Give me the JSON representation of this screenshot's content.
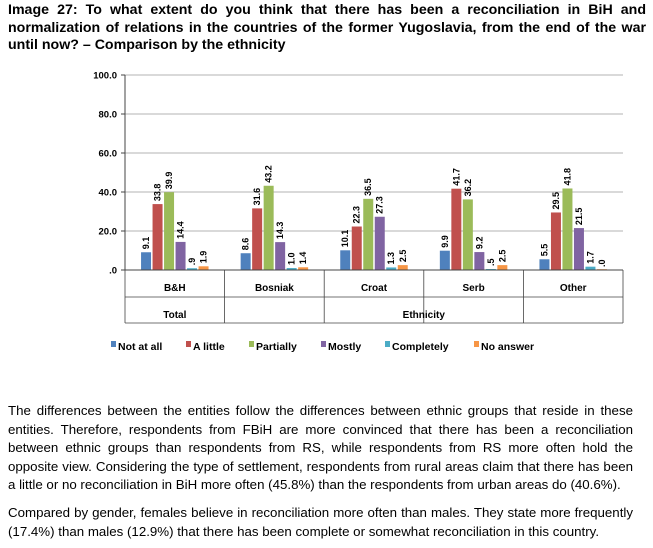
{
  "caption": "Image 27: To what extent do you think that there has been a reconciliation in BiH and normalization of relations in the countries of the former Yugoslavia, from the end of the war until now? – Comparison by the ethnicity",
  "paragraphs": [
    "The differences between the entities follow the differences between ethnic groups that reside in these entities. Therefore, respondents from FBiH are more convinced that there has been a reconciliation between ethnic groups than respondents from RS, while respondents from RS more often hold the opposite view. Considering the type of settlement, respondents from rural areas claim that there has been a little or no reconciliation in BiH more often (45.8%) than the respondents from urban areas do (40.6%).",
    "Compared by gender, females believe in reconciliation more often than males. They state more frequently (17.4%) than males (12.9%) that there has been complete or somewhat reconciliation in this country."
  ],
  "chart_data": {
    "type": "bar",
    "categories": [
      "B&H",
      "Bosniak",
      "Croat",
      "Serb",
      "Other"
    ],
    "groups": [
      {
        "label": "Total",
        "categories": [
          "B&H"
        ]
      },
      {
        "label": "Ethnicity",
        "categories": [
          "Bosniak",
          "Croat",
          "Serb",
          "Other"
        ]
      }
    ],
    "series": [
      {
        "name": "Not at all",
        "color": "#4f81bd",
        "values": [
          9.1,
          8.6,
          10.1,
          9.9,
          5.5
        ],
        "labels": [
          "9.1",
          "8.6",
          "10.1",
          "9.9",
          "5.5"
        ]
      },
      {
        "name": "A little",
        "color": "#c0504d",
        "values": [
          33.8,
          31.6,
          22.3,
          41.7,
          29.5
        ],
        "labels": [
          "33.8",
          "31.6",
          "22.3",
          "41.7",
          "29.5"
        ]
      },
      {
        "name": "Partially",
        "color": "#9bbb59",
        "values": [
          39.9,
          43.2,
          36.5,
          36.2,
          41.8
        ],
        "labels": [
          "39.9",
          "43.2",
          "36.5",
          "36.2",
          "41.8"
        ]
      },
      {
        "name": "Mostly",
        "color": "#8064a2",
        "values": [
          14.4,
          14.3,
          27.3,
          9.2,
          21.5
        ],
        "labels": [
          "14.4",
          "14.3",
          "27.3",
          "9.2",
          "21.5"
        ]
      },
      {
        "name": "Completely",
        "color": "#4bacc6",
        "values": [
          0.9,
          1.0,
          1.3,
          0.5,
          1.7
        ],
        "labels": [
          ".9",
          "1.0",
          "1.3",
          ".5",
          "1.7"
        ]
      },
      {
        "name": "No answer",
        "color": "#f79646",
        "values": [
          1.9,
          1.4,
          2.5,
          2.5,
          0.0
        ],
        "labels": [
          "1.9",
          "1.4",
          "2.5",
          "2.5",
          ".0"
        ]
      }
    ],
    "yticks": [
      "100.0",
      "80.0",
      "60.0",
      "40.0",
      "20.0",
      ".0"
    ],
    "ylim": [
      0,
      100
    ],
    "grid": true,
    "legend_position": "bottom"
  }
}
